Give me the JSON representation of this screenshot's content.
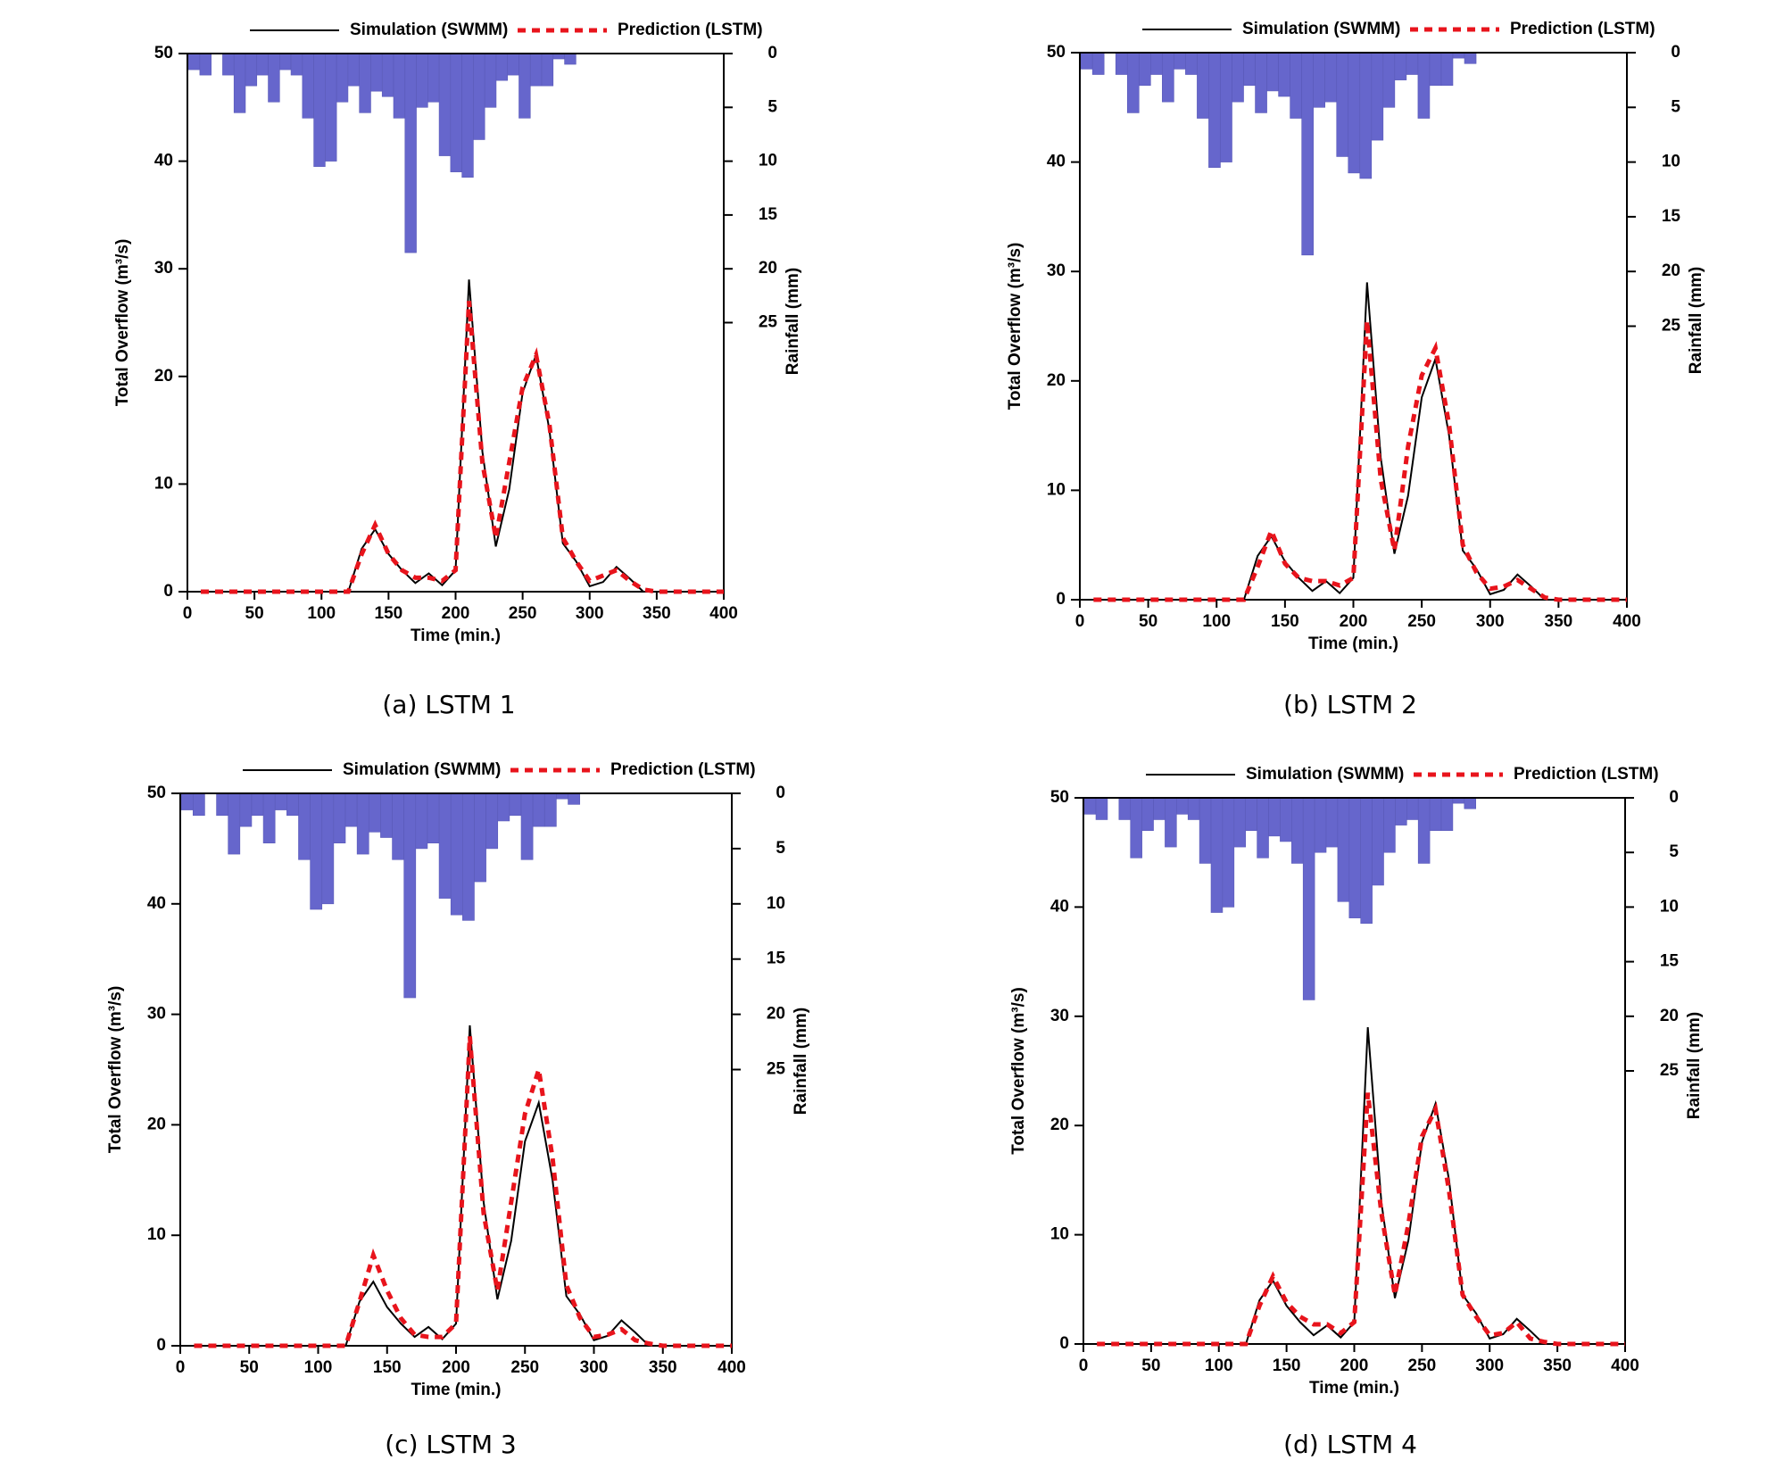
{
  "chart_data": [
    {
      "type": "line",
      "caption": "(a) LSTM 1",
      "xlabel": "Time (min.)",
      "ylabel": "Total Overflow (m³/s)",
      "y2label": "Rainfall (mm)",
      "xlim": [
        0,
        400
      ],
      "xticks": [
        0,
        50,
        100,
        150,
        200,
        250,
        300,
        350,
        400
      ],
      "ylim": [
        0,
        50
      ],
      "yticks": [
        0,
        10,
        20,
        30,
        40,
        50
      ],
      "y2lim": [
        0,
        50
      ],
      "y2ticks": [
        0,
        5,
        10,
        15,
        20,
        25
      ],
      "y2_inverted": true,
      "x": [
        10,
        20,
        30,
        40,
        50,
        60,
        70,
        80,
        90,
        100,
        110,
        120,
        130,
        140,
        150,
        160,
        170,
        180,
        190,
        200,
        210,
        220,
        230,
        240,
        250,
        260,
        270,
        280,
        290,
        300,
        310,
        320,
        330,
        340,
        350,
        360,
        370,
        380,
        390,
        400
      ],
      "series": [
        {
          "name": "Simulation (SWMM)",
          "color": "#000000",
          "values": [
            0,
            0,
            0,
            0,
            0,
            0,
            0,
            0,
            0,
            0,
            0,
            0,
            4,
            5.8,
            3.5,
            2,
            0.8,
            1.7,
            0.6,
            2,
            29,
            13,
            4.2,
            9.5,
            18.5,
            22,
            15,
            4.5,
            2.8,
            0.5,
            0.9,
            2.3,
            1.2,
            0,
            0,
            0,
            0,
            0,
            0,
            0
          ]
        },
        {
          "name": "Prediction (LSTM)",
          "color": "#e8141c",
          "dashed": true,
          "values": [
            0,
            0,
            0,
            0,
            0,
            0,
            0,
            0,
            0,
            0,
            0,
            0,
            3.5,
            6.2,
            3.5,
            2,
            1.3,
            1.3,
            1,
            2,
            27,
            12,
            5,
            12,
            19,
            22,
            15.5,
            5,
            2.8,
            1,
            1.5,
            2,
            1,
            0.2,
            0,
            0,
            0,
            0,
            0,
            0
          ]
        }
      ],
      "rainfall": {
        "axis": "y2",
        "color": "#6666cc",
        "x": [
          5,
          13.5,
          22,
          30.5,
          39,
          47.5,
          56,
          64.5,
          73,
          81.5,
          90,
          98.5,
          107,
          115.5,
          124,
          132.5,
          141,
          149.5,
          158,
          166.5,
          175,
          183.5,
          192,
          200.5,
          209,
          217.5,
          226,
          234.5,
          243,
          251.5,
          260,
          268.5,
          277,
          285.5
        ],
        "values": [
          1.5,
          2,
          0,
          2,
          5.5,
          3,
          2,
          4.5,
          1.5,
          2,
          6,
          10.5,
          10,
          4.5,
          3,
          5.5,
          3.5,
          4,
          6,
          18.5,
          5,
          4.5,
          9.5,
          11,
          11.5,
          8,
          5,
          2.5,
          2,
          6,
          3,
          3,
          0.5,
          1
        ]
      }
    },
    {
      "type": "line",
      "caption": "(b) LSTM 2",
      "xlabel": "Time (min.)",
      "ylabel": "Total Overflow (m³/s)",
      "y2label": "Rainfall (mm)",
      "xlim": [
        0,
        400
      ],
      "xticks": [
        0,
        50,
        100,
        150,
        200,
        250,
        300,
        350,
        400
      ],
      "ylim": [
        0,
        50
      ],
      "yticks": [
        0,
        10,
        20,
        30,
        40,
        50
      ],
      "y2lim": [
        0,
        50
      ],
      "y2ticks": [
        0,
        5,
        10,
        15,
        20,
        25
      ],
      "y2_inverted": true,
      "x": [
        10,
        20,
        30,
        40,
        50,
        60,
        70,
        80,
        90,
        100,
        110,
        120,
        130,
        140,
        150,
        160,
        170,
        180,
        190,
        200,
        210,
        220,
        230,
        240,
        250,
        260,
        270,
        280,
        290,
        300,
        310,
        320,
        330,
        340,
        350,
        360,
        370,
        380,
        390,
        400
      ],
      "series": [
        {
          "name": "Simulation (SWMM)",
          "color": "#000000",
          "values": [
            0,
            0,
            0,
            0,
            0,
            0,
            0,
            0,
            0,
            0,
            0,
            0,
            4,
            5.8,
            3.5,
            2,
            0.8,
            1.7,
            0.6,
            2,
            29,
            13,
            4.2,
            9.5,
            18.5,
            22,
            15,
            4.5,
            2.8,
            0.5,
            0.9,
            2.3,
            1.2,
            0,
            0,
            0,
            0,
            0,
            0,
            0
          ]
        },
        {
          "name": "Prediction (LSTM)",
          "color": "#e8141c",
          "dashed": true,
          "values": [
            0,
            0,
            0,
            0,
            0,
            0,
            0,
            0,
            0,
            0,
            0,
            0,
            3,
            6.3,
            3.3,
            2,
            1.7,
            1.7,
            1.3,
            2,
            25.5,
            11,
            4.5,
            14,
            20.5,
            23,
            16,
            5,
            2.5,
            1,
            1.2,
            1.8,
            1,
            0.2,
            0,
            0,
            0,
            0,
            0,
            0
          ]
        }
      ],
      "rainfall": {
        "axis": "y2",
        "color": "#6666cc",
        "x": [
          5,
          13.5,
          22,
          30.5,
          39,
          47.5,
          56,
          64.5,
          73,
          81.5,
          90,
          98.5,
          107,
          115.5,
          124,
          132.5,
          141,
          149.5,
          158,
          166.5,
          175,
          183.5,
          192,
          200.5,
          209,
          217.5,
          226,
          234.5,
          243,
          251.5,
          260,
          268.5,
          277,
          285.5
        ],
        "values": [
          1.5,
          2,
          0,
          2,
          5.5,
          3,
          2,
          4.5,
          1.5,
          2,
          6,
          10.5,
          10,
          4.5,
          3,
          5.5,
          3.5,
          4,
          6,
          18.5,
          5,
          4.5,
          9.5,
          11,
          11.5,
          8,
          5,
          2.5,
          2,
          6,
          3,
          3,
          0.5,
          1
        ]
      }
    },
    {
      "type": "line",
      "caption": "(c) LSTM 3",
      "xlabel": "Time (min.)",
      "ylabel": "Total Overflow (m³/s)",
      "y2label": "Rainfall (mm)",
      "xlim": [
        0,
        400
      ],
      "xticks": [
        0,
        50,
        100,
        150,
        200,
        250,
        300,
        350,
        400
      ],
      "ylim": [
        0,
        50
      ],
      "yticks": [
        0,
        10,
        20,
        30,
        40,
        50
      ],
      "y2lim": [
        0,
        50
      ],
      "y2ticks": [
        0,
        5,
        10,
        15,
        20,
        25
      ],
      "y2_inverted": true,
      "x": [
        10,
        20,
        30,
        40,
        50,
        60,
        70,
        80,
        90,
        100,
        110,
        120,
        130,
        140,
        150,
        160,
        170,
        180,
        190,
        200,
        210,
        220,
        230,
        240,
        250,
        260,
        270,
        280,
        290,
        300,
        310,
        320,
        330,
        340,
        350,
        360,
        370,
        380,
        390,
        400
      ],
      "series": [
        {
          "name": "Simulation (SWMM)",
          "color": "#000000",
          "values": [
            0,
            0,
            0,
            0,
            0,
            0,
            0,
            0,
            0,
            0,
            0,
            0,
            4,
            5.8,
            3.5,
            2,
            0.8,
            1.7,
            0.6,
            2,
            29,
            13,
            4.2,
            9.5,
            18.5,
            22,
            15,
            4.5,
            2.8,
            0.5,
            0.9,
            2.3,
            1.2,
            0,
            0,
            0,
            0,
            0,
            0,
            0
          ]
        },
        {
          "name": "Prediction (LSTM)",
          "color": "#e8141c",
          "dashed": true,
          "values": [
            0,
            0,
            0,
            0,
            0,
            0,
            0,
            0,
            0,
            0,
            0,
            0,
            4,
            8.2,
            5,
            2.5,
            1,
            0.8,
            0.8,
            2,
            28,
            12,
            5,
            13,
            21,
            25,
            17,
            5.5,
            2.5,
            0.8,
            1,
            1.5,
            0.5,
            0.2,
            0,
            0,
            0,
            0,
            0,
            0
          ]
        }
      ],
      "rainfall": {
        "axis": "y2",
        "color": "#6666cc",
        "x": [
          5,
          13.5,
          22,
          30.5,
          39,
          47.5,
          56,
          64.5,
          73,
          81.5,
          90,
          98.5,
          107,
          115.5,
          124,
          132.5,
          141,
          149.5,
          158,
          166.5,
          175,
          183.5,
          192,
          200.5,
          209,
          217.5,
          226,
          234.5,
          243,
          251.5,
          260,
          268.5,
          277,
          285.5
        ],
        "values": [
          1.5,
          2,
          0,
          2,
          5.5,
          3,
          2,
          4.5,
          1.5,
          2,
          6,
          10.5,
          10,
          4.5,
          3,
          5.5,
          3.5,
          4,
          6,
          18.5,
          5,
          4.5,
          9.5,
          11,
          11.5,
          8,
          5,
          2.5,
          2,
          6,
          3,
          3,
          0.5,
          1
        ]
      }
    },
    {
      "type": "line",
      "caption": "(d) LSTM 4",
      "xlabel": "Time (min.)",
      "ylabel": "Total Overflow (m³/s)",
      "y2label": "Rainfall (mm)",
      "xlim": [
        0,
        400
      ],
      "xticks": [
        0,
        50,
        100,
        150,
        200,
        250,
        300,
        350,
        400
      ],
      "ylim": [
        0,
        50
      ],
      "yticks": [
        0,
        10,
        20,
        30,
        40,
        50
      ],
      "y2lim": [
        0,
        50
      ],
      "y2ticks": [
        0,
        5,
        10,
        15,
        20,
        25
      ],
      "y2_inverted": true,
      "x": [
        10,
        20,
        30,
        40,
        50,
        60,
        70,
        80,
        90,
        100,
        110,
        120,
        130,
        140,
        150,
        160,
        170,
        180,
        190,
        200,
        210,
        220,
        230,
        240,
        250,
        260,
        270,
        280,
        290,
        300,
        310,
        320,
        330,
        340,
        350,
        360,
        370,
        380,
        390,
        400
      ],
      "series": [
        {
          "name": "Simulation (SWMM)",
          "color": "#000000",
          "values": [
            0,
            0,
            0,
            0,
            0,
            0,
            0,
            0,
            0,
            0,
            0,
            0,
            4,
            5.8,
            3.5,
            2,
            0.8,
            1.7,
            0.6,
            2,
            29,
            13,
            4.2,
            9.5,
            18.5,
            22,
            15,
            4.5,
            2.8,
            0.5,
            0.9,
            2.3,
            1.2,
            0,
            0,
            0,
            0,
            0,
            0,
            0
          ]
        },
        {
          "name": "Prediction (LSTM)",
          "color": "#e8141c",
          "dashed": true,
          "values": [
            0,
            0,
            0,
            0,
            0,
            0,
            0,
            0,
            0,
            0,
            0,
            0,
            3.5,
            6.2,
            3.8,
            2.5,
            1.8,
            1.8,
            1,
            2,
            23,
            12,
            4.5,
            11,
            19,
            21.5,
            14,
            4.5,
            2.5,
            0.8,
            1,
            2,
            0.5,
            0.2,
            0,
            0,
            0,
            0,
            0,
            0
          ]
        }
      ],
      "rainfall": {
        "axis": "y2",
        "color": "#6666cc",
        "x": [
          5,
          13.5,
          22,
          30.5,
          39,
          47.5,
          56,
          64.5,
          73,
          81.5,
          90,
          98.5,
          107,
          115.5,
          124,
          132.5,
          141,
          149.5,
          158,
          166.5,
          175,
          183.5,
          192,
          200.5,
          209,
          217.5,
          226,
          234.5,
          243,
          251.5,
          260,
          268.5,
          277,
          285.5
        ],
        "values": [
          1.5,
          2,
          0,
          2,
          5.5,
          3,
          2,
          4.5,
          1.5,
          2,
          6,
          10.5,
          10,
          4.5,
          3,
          5.5,
          3.5,
          4,
          6,
          18.5,
          5,
          4.5,
          9.5,
          11,
          11.5,
          8,
          5,
          2.5,
          2,
          6,
          3,
          3,
          0.5,
          1
        ]
      }
    }
  ]
}
